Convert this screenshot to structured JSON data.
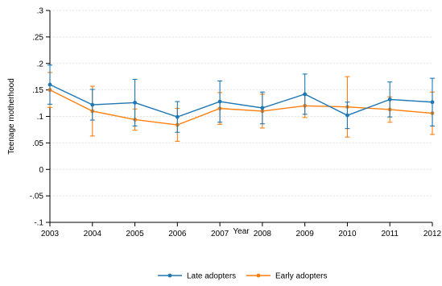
{
  "chart_data": {
    "type": "line",
    "title": "",
    "xlabel": "Year",
    "ylabel": "Teenage motherhood",
    "x": [
      2003,
      2004,
      2005,
      2006,
      2007,
      2008,
      2009,
      2010,
      2011,
      2012
    ],
    "x_tick_labels": [
      "2003",
      "2004",
      "2005",
      "2006",
      "2007",
      "2008",
      "2009",
      "2010",
      "2011",
      "2012"
    ],
    "xlim": [
      2003,
      2012
    ],
    "ylim": [
      -0.1,
      0.3
    ],
    "y_ticks": [
      -0.1,
      -0.05,
      0,
      0.05,
      0.1,
      0.15,
      0.2,
      0.25,
      0.3
    ],
    "y_tick_labels": [
      "-.1",
      "-.05",
      "0",
      ".05",
      ".1",
      ".15",
      ".2",
      ".25",
      ".3"
    ],
    "grid": true,
    "error_bars": true,
    "legend_position": "bottom",
    "series": [
      {
        "name": "Late adopters",
        "color": "#1f77b4",
        "values": [
          0.16,
          0.122,
          0.126,
          0.099,
          0.128,
          0.116,
          0.142,
          0.102,
          0.132,
          0.127
        ],
        "ci_low": [
          0.123,
          0.093,
          0.082,
          0.07,
          0.089,
          0.086,
          0.104,
          0.077,
          0.099,
          0.082
        ],
        "ci_high": [
          0.197,
          0.151,
          0.17,
          0.128,
          0.167,
          0.146,
          0.18,
          0.127,
          0.165,
          0.172
        ]
      },
      {
        "name": "Early adopters",
        "color": "#ff7f0e",
        "values": [
          0.15,
          0.11,
          0.094,
          0.084,
          0.115,
          0.11,
          0.12,
          0.118,
          0.113,
          0.106
        ],
        "ci_low": [
          0.117,
          0.063,
          0.074,
          0.053,
          0.085,
          0.078,
          0.098,
          0.061,
          0.089,
          0.066
        ],
        "ci_high": [
          0.183,
          0.157,
          0.114,
          0.115,
          0.145,
          0.142,
          0.142,
          0.175,
          0.137,
          0.146
        ]
      }
    ]
  }
}
